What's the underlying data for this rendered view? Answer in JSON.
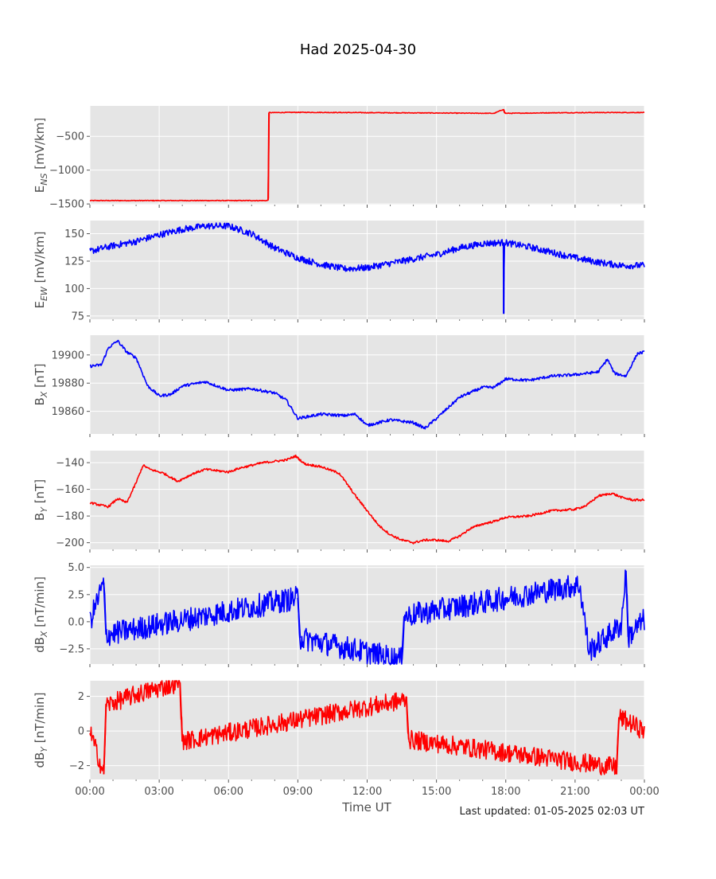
{
  "title": "Had 2025-04-30",
  "last_updated": "Last updated: 01-05-2025 02:03 UT",
  "xlabel": "Time UT",
  "x_tick_labels": [
    "00:00",
    "03:00",
    "06:00",
    "09:00",
    "12:00",
    "15:00",
    "18:00",
    "21:00",
    "00:00"
  ],
  "colors": {
    "red": "#ff0000",
    "blue": "#0000ff",
    "panel_bg": "#e5e5e5",
    "grid": "#ffffff"
  },
  "chart_data": [
    {
      "type": "line",
      "panel": "E_NS",
      "ylabel_main": "E",
      "ylabel_sub": "NS",
      "ylabel_unit": " [mV/km]",
      "color": "#ff0000",
      "ylim": [
        -1510,
        -50
      ],
      "yticks": [
        -1500,
        -1000,
        -500
      ],
      "ytick_labels": [
        "−1500",
        "−1000",
        "−500"
      ],
      "xlim_hours": [
        0,
        24
      ],
      "points": [
        [
          0,
          -1450
        ],
        [
          7.7,
          -1450
        ],
        [
          7.72,
          -1420
        ],
        [
          7.75,
          -150
        ],
        [
          9,
          -145
        ],
        [
          12,
          -150
        ],
        [
          15,
          -155
        ],
        [
          17.5,
          -160
        ],
        [
          17.9,
          -100
        ],
        [
          17.95,
          -150
        ],
        [
          18,
          -160
        ],
        [
          20,
          -152
        ],
        [
          22,
          -148
        ],
        [
          24,
          -148
        ]
      ],
      "noise": 5
    },
    {
      "type": "line",
      "panel": "E_EW",
      "ylabel_main": "E",
      "ylabel_sub": "EW",
      "ylabel_unit": " [mV/km]",
      "color": "#0000ff",
      "ylim": [
        72,
        162
      ],
      "yticks": [
        75,
        100,
        125,
        150
      ],
      "ytick_labels": [
        "75",
        "100",
        "125",
        "150"
      ],
      "xlim_hours": [
        0,
        24
      ],
      "points": [
        [
          0,
          134
        ],
        [
          1,
          139
        ],
        [
          2,
          143
        ],
        [
          3,
          149
        ],
        [
          4,
          154
        ],
        [
          5,
          157
        ],
        [
          6,
          157
        ],
        [
          7,
          150
        ],
        [
          8,
          137
        ],
        [
          9,
          128
        ],
        [
          10,
          122
        ],
        [
          11,
          118
        ],
        [
          12,
          119
        ],
        [
          13,
          123
        ],
        [
          14,
          127
        ],
        [
          15,
          131
        ],
        [
          16,
          137
        ],
        [
          17,
          141
        ],
        [
          17.9,
          142
        ],
        [
          17.91,
          77
        ],
        [
          17.93,
          142
        ],
        [
          19,
          138
        ],
        [
          20,
          133
        ],
        [
          21,
          128
        ],
        [
          22,
          124
        ],
        [
          23,
          121
        ],
        [
          24,
          121
        ]
      ],
      "noise": 3
    },
    {
      "type": "line",
      "panel": "B_X",
      "ylabel_main": "B",
      "ylabel_sub": "X",
      "ylabel_unit": " [nT]",
      "color": "#0000ff",
      "ylim": [
        19844,
        19914
      ],
      "yticks": [
        19860,
        19880,
        19900
      ],
      "ytick_labels": [
        "19860",
        "19880",
        "19900"
      ],
      "xlim_hours": [
        0,
        24
      ],
      "points": [
        [
          0,
          19892
        ],
        [
          0.5,
          19893
        ],
        [
          0.8,
          19905
        ],
        [
          1.2,
          19910
        ],
        [
          1.6,
          19902
        ],
        [
          2,
          19898
        ],
        [
          2.5,
          19878
        ],
        [
          3,
          19871
        ],
        [
          3.5,
          19872
        ],
        [
          4,
          19878
        ],
        [
          5,
          19881
        ],
        [
          5.5,
          19878
        ],
        [
          6,
          19875
        ],
        [
          7,
          19876
        ],
        [
          8,
          19873
        ],
        [
          8.5,
          19868
        ],
        [
          9,
          19855
        ],
        [
          10,
          19858
        ],
        [
          11,
          19857
        ],
        [
          11.5,
          19858
        ],
        [
          12,
          19850
        ],
        [
          13,
          19854
        ],
        [
          14,
          19852
        ],
        [
          14.5,
          19848
        ],
        [
          15,
          19855
        ],
        [
          16,
          19870
        ],
        [
          17,
          19877
        ],
        [
          17.5,
          19877
        ],
        [
          18,
          19883
        ],
        [
          19,
          19882
        ],
        [
          20,
          19885
        ],
        [
          21,
          19886
        ],
        [
          22,
          19888
        ],
        [
          22.4,
          19897
        ],
        [
          22.7,
          19887
        ],
        [
          23.2,
          19885
        ],
        [
          23.7,
          19901
        ],
        [
          24,
          19902
        ]
      ],
      "noise": 1
    },
    {
      "type": "line",
      "panel": "B_Y",
      "ylabel_main": "B",
      "ylabel_sub": "Y",
      "ylabel_unit": " [nT]",
      "color": "#ff0000",
      "ylim": [
        -205,
        -131
      ],
      "yticks": [
        -200,
        -180,
        -160,
        -140
      ],
      "ytick_labels": [
        "−200",
        "−180",
        "−160",
        "−140"
      ],
      "xlim_hours": [
        0,
        24
      ],
      "points": [
        [
          0,
          -170
        ],
        [
          0.5,
          -172
        ],
        [
          0.8,
          -173
        ],
        [
          1.2,
          -167
        ],
        [
          1.6,
          -170
        ],
        [
          2,
          -155
        ],
        [
          2.3,
          -142
        ],
        [
          2.6,
          -145
        ],
        [
          3.2,
          -148
        ],
        [
          3.8,
          -154
        ],
        [
          4.5,
          -148
        ],
        [
          5,
          -145
        ],
        [
          6,
          -147
        ],
        [
          6.5,
          -144
        ],
        [
          7.5,
          -140
        ],
        [
          8.5,
          -138
        ],
        [
          8.9,
          -135
        ],
        [
          9.3,
          -141
        ],
        [
          10,
          -143
        ],
        [
          10.8,
          -148
        ],
        [
          11.5,
          -165
        ],
        [
          12,
          -176
        ],
        [
          12.5,
          -187
        ],
        [
          13,
          -194
        ],
        [
          13.5,
          -198
        ],
        [
          14,
          -200
        ],
        [
          14.5,
          -198
        ],
        [
          15,
          -198
        ],
        [
          15.5,
          -199
        ],
        [
          16,
          -195
        ],
        [
          16.5,
          -189
        ],
        [
          17,
          -186
        ],
        [
          17.5,
          -184
        ],
        [
          18,
          -181
        ],
        [
          19,
          -180
        ],
        [
          20,
          -176
        ],
        [
          21,
          -175
        ],
        [
          21.5,
          -172
        ],
        [
          22,
          -165
        ],
        [
          22.6,
          -163
        ],
        [
          23,
          -166
        ],
        [
          23.5,
          -168
        ],
        [
          24,
          -168
        ]
      ],
      "noise": 0.8
    },
    {
      "type": "line",
      "panel": "dB_X",
      "ylabel_main": "dB",
      "ylabel_sub": "X",
      "ylabel_unit": " [nT/min]",
      "color": "#0000ff",
      "ylim": [
        -3.9,
        5.2
      ],
      "yticks": [
        -2.5,
        0,
        2.5,
        5
      ],
      "ytick_labels": [
        "−2.5",
        "0.0",
        "2.5",
        "5.0"
      ],
      "xlim_hours": [
        0,
        24
      ],
      "points": [
        [
          0,
          0
        ],
        [
          0.6,
          3.6
        ],
        [
          0.7,
          -1.2
        ],
        [
          9,
          2.2
        ],
        [
          9.1,
          -1.5
        ],
        [
          13.5,
          -3.5
        ],
        [
          13.6,
          0.5
        ],
        [
          21.2,
          3.4
        ],
        [
          21.6,
          -2.7
        ],
        [
          23,
          -0.3
        ],
        [
          23.2,
          4.7
        ],
        [
          23.3,
          -1.4
        ],
        [
          24,
          0.2
        ]
      ],
      "noise": 1.1
    },
    {
      "type": "line",
      "panel": "dB_Y",
      "ylabel_main": "dB",
      "ylabel_sub": "Y",
      "ylabel_unit": " [nT/min]",
      "color": "#ff0000",
      "ylim": [
        -2.8,
        2.9
      ],
      "yticks": [
        -2,
        0,
        2
      ],
      "ytick_labels": [
        "−2",
        "0",
        "2"
      ],
      "xlim_hours": [
        0,
        24
      ],
      "points": [
        [
          0,
          0
        ],
        [
          0.6,
          -2.5
        ],
        [
          0.7,
          1.5
        ],
        [
          2,
          2.1
        ],
        [
          3.9,
          2.8
        ],
        [
          4,
          -0.6
        ],
        [
          13.7,
          1.8
        ],
        [
          13.8,
          -0.5
        ],
        [
          22.8,
          -2.1
        ],
        [
          22.9,
          0.8
        ],
        [
          24,
          0
        ]
      ],
      "noise": 0.55
    }
  ]
}
